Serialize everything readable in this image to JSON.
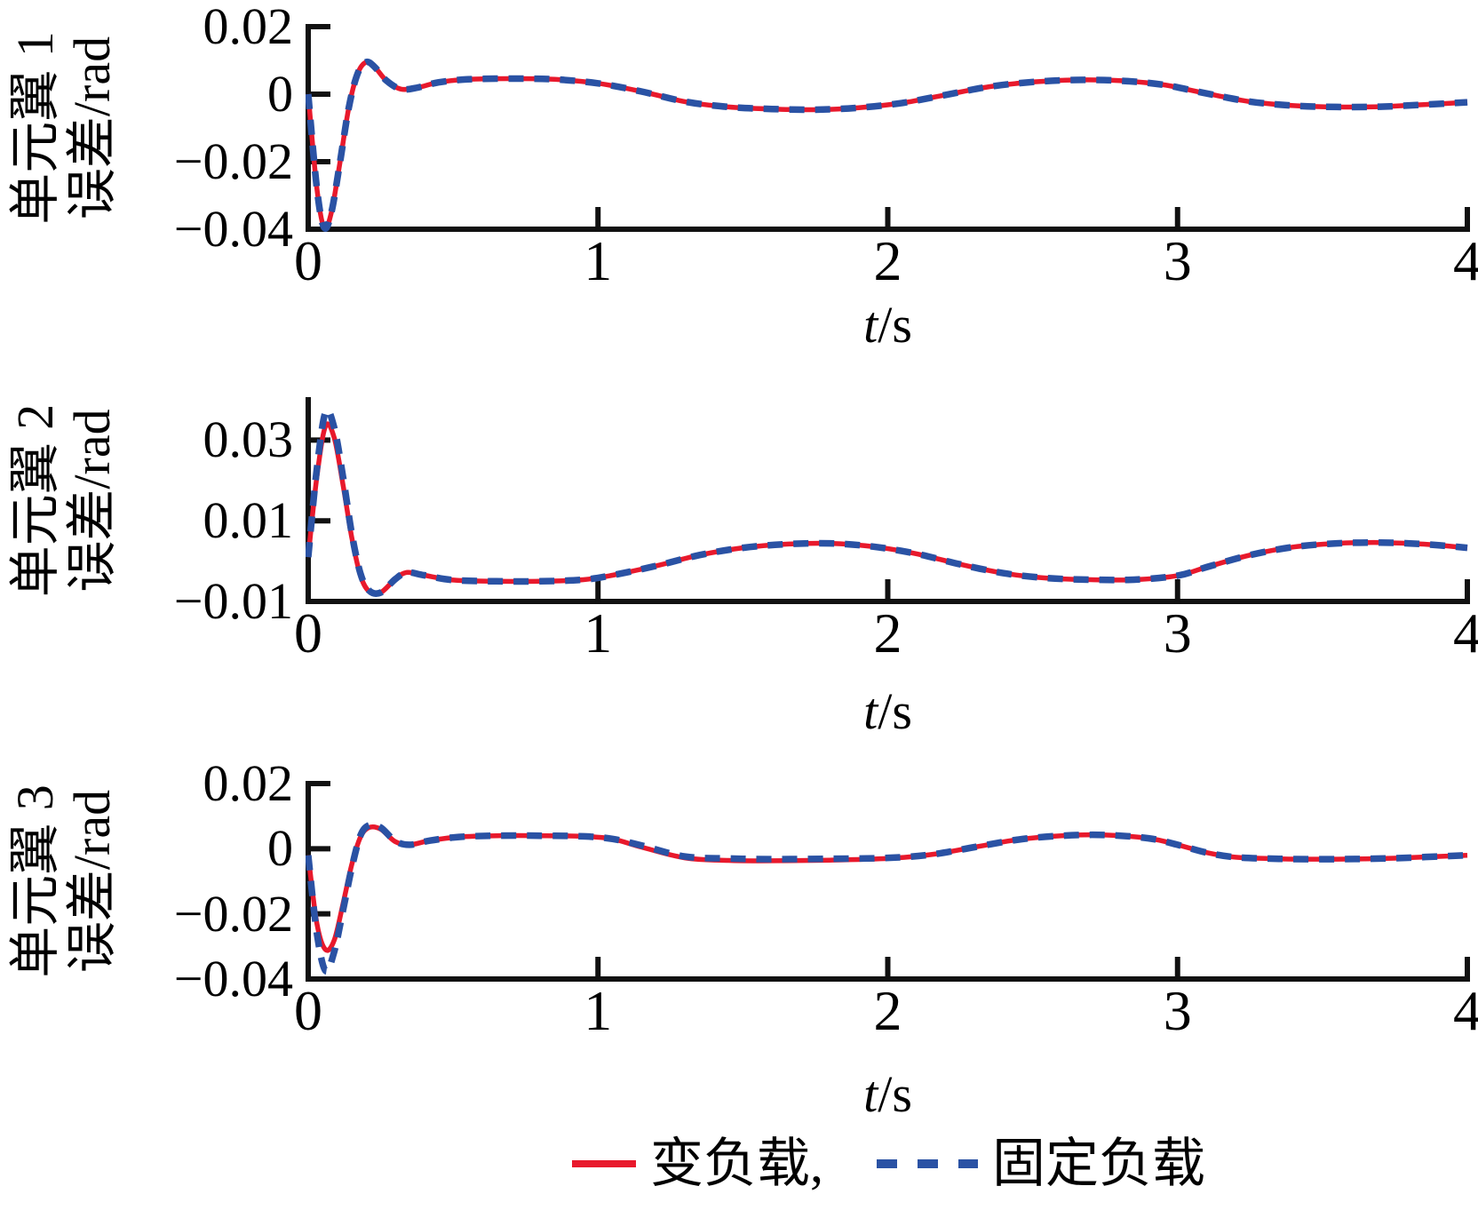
{
  "page": {
    "background": "#ffffff",
    "text_color": "#000000"
  },
  "colors": {
    "variable_load": "#e8192c",
    "fixed_load": "#2a52a4",
    "axis": "#111111"
  },
  "legend": {
    "items": [
      {
        "label": "变负载,",
        "color": "#e8192c",
        "style": "solid"
      },
      {
        "label": "固定负载",
        "color": "#2a52a4",
        "style": "dashed"
      }
    ]
  },
  "chart_data": [
    {
      "type": "line",
      "title": "",
      "ylabel_lines": [
        "单元翼 1",
        "误差/rad"
      ],
      "xlabel": {
        "var": "t",
        "unit": "/s"
      },
      "xlim": [
        0,
        4
      ],
      "ylim": [
        -0.04,
        0.02
      ],
      "grid": false,
      "xticks": [
        {
          "v": 0,
          "label": "0"
        },
        {
          "v": 1,
          "label": "1"
        },
        {
          "v": 2,
          "label": "2"
        },
        {
          "v": 3,
          "label": "3"
        },
        {
          "v": 4,
          "label": "4"
        }
      ],
      "yticks": [
        {
          "v": 0.02,
          "label": "0.02"
        },
        {
          "v": 0,
          "label": "0"
        },
        {
          "v": -0.02,
          "label": "−0.02"
        },
        {
          "v": -0.04,
          "label": "−0.04"
        }
      ],
      "series": [
        {
          "name": "变负载",
          "color": "#e8192c",
          "dash": null,
          "width": 5.5,
          "points": [
            [
              0,
              0
            ],
            [
              0.03,
              -0.028
            ],
            [
              0.055,
              -0.0395
            ],
            [
              0.08,
              -0.035
            ],
            [
              0.11,
              -0.02
            ],
            [
              0.14,
              -0.004
            ],
            [
              0.17,
              0.006
            ],
            [
              0.2,
              0.0095
            ],
            [
              0.23,
              0.008
            ],
            [
              0.27,
              0.004
            ],
            [
              0.32,
              0.0015
            ],
            [
              0.38,
              0.002
            ],
            [
              0.45,
              0.0035
            ],
            [
              0.55,
              0.0044
            ],
            [
              0.7,
              0.0046
            ],
            [
              0.85,
              0.0044
            ],
            [
              1.0,
              0.0032
            ],
            [
              1.15,
              0.0008
            ],
            [
              1.3,
              -0.0022
            ],
            [
              1.45,
              -0.0038
            ],
            [
              1.6,
              -0.0044
            ],
            [
              1.75,
              -0.0046
            ],
            [
              1.9,
              -0.004
            ],
            [
              2.05,
              -0.0026
            ],
            [
              2.2,
              -0.0002
            ],
            [
              2.35,
              0.0022
            ],
            [
              2.5,
              0.0036
            ],
            [
              2.65,
              0.0042
            ],
            [
              2.8,
              0.004
            ],
            [
              2.95,
              0.0028
            ],
            [
              3.1,
              0.0002
            ],
            [
              3.25,
              -0.0022
            ],
            [
              3.4,
              -0.0034
            ],
            [
              3.55,
              -0.0038
            ],
            [
              3.7,
              -0.0037
            ],
            [
              3.85,
              -0.0031
            ],
            [
              4.0,
              -0.0024
            ]
          ]
        },
        {
          "name": "固定负载",
          "color": "#2a52a4",
          "dash": "17 12",
          "width": 7.5,
          "points": [
            [
              0,
              0
            ],
            [
              0.03,
              -0.028
            ],
            [
              0.055,
              -0.0395
            ],
            [
              0.08,
              -0.035
            ],
            [
              0.11,
              -0.02
            ],
            [
              0.14,
              -0.004
            ],
            [
              0.17,
              0.006
            ],
            [
              0.2,
              0.0095
            ],
            [
              0.23,
              0.008
            ],
            [
              0.27,
              0.004
            ],
            [
              0.32,
              0.0015
            ],
            [
              0.38,
              0.002
            ],
            [
              0.45,
              0.0035
            ],
            [
              0.55,
              0.0044
            ],
            [
              0.7,
              0.0046
            ],
            [
              0.85,
              0.0044
            ],
            [
              1.0,
              0.0032
            ],
            [
              1.15,
              0.0008
            ],
            [
              1.3,
              -0.0022
            ],
            [
              1.45,
              -0.0038
            ],
            [
              1.6,
              -0.0044
            ],
            [
              1.75,
              -0.0046
            ],
            [
              1.9,
              -0.004
            ],
            [
              2.05,
              -0.0026
            ],
            [
              2.2,
              -0.0002
            ],
            [
              2.35,
              0.0022
            ],
            [
              2.5,
              0.0036
            ],
            [
              2.65,
              0.0042
            ],
            [
              2.8,
              0.004
            ],
            [
              2.95,
              0.0028
            ],
            [
              3.1,
              0.0002
            ],
            [
              3.25,
              -0.0022
            ],
            [
              3.4,
              -0.0034
            ],
            [
              3.55,
              -0.0038
            ],
            [
              3.7,
              -0.0037
            ],
            [
              3.85,
              -0.0031
            ],
            [
              4.0,
              -0.0024
            ]
          ]
        }
      ]
    },
    {
      "type": "line",
      "title": "",
      "ylabel_lines": [
        "单元翼 2",
        "误差/rad"
      ],
      "xlabel": {
        "var": "t",
        "unit": "/s"
      },
      "xlim": [
        0,
        4
      ],
      "ylim": [
        -0.01,
        0.04
      ],
      "grid": false,
      "xticks": [
        {
          "v": 0,
          "label": "0"
        },
        {
          "v": 1,
          "label": "1"
        },
        {
          "v": 2,
          "label": "2"
        },
        {
          "v": 3,
          "label": "3"
        },
        {
          "v": 4,
          "label": "4"
        }
      ],
      "yticks": [
        {
          "v": 0.03,
          "label": "0.03"
        },
        {
          "v": 0.01,
          "label": "0.01"
        },
        {
          "v": -0.01,
          "label": "−0.01"
        }
      ],
      "series": [
        {
          "name": "变负载",
          "color": "#e8192c",
          "dash": null,
          "width": 5.5,
          "points": [
            [
              0,
              0.001
            ],
            [
              0.03,
              0.021
            ],
            [
              0.06,
              0.0335
            ],
            [
              0.09,
              0.0305
            ],
            [
              0.12,
              0.019
            ],
            [
              0.15,
              0.006
            ],
            [
              0.18,
              -0.0035
            ],
            [
              0.21,
              -0.0075
            ],
            [
              0.25,
              -0.0078
            ],
            [
              0.3,
              -0.0045
            ],
            [
              0.34,
              -0.0028
            ],
            [
              0.4,
              -0.0035
            ],
            [
              0.5,
              -0.0047
            ],
            [
              0.65,
              -0.005
            ],
            [
              0.8,
              -0.005
            ],
            [
              0.95,
              -0.0046
            ],
            [
              1.05,
              -0.0035
            ],
            [
              1.2,
              -0.0012
            ],
            [
              1.35,
              0.0015
            ],
            [
              1.5,
              0.0033
            ],
            [
              1.65,
              0.0042
            ],
            [
              1.8,
              0.0044
            ],
            [
              1.95,
              0.0036
            ],
            [
              2.1,
              0.0018
            ],
            [
              2.25,
              -0.0008
            ],
            [
              2.4,
              -0.003
            ],
            [
              2.55,
              -0.0042
            ],
            [
              2.7,
              -0.0046
            ],
            [
              2.85,
              -0.0046
            ],
            [
              3.0,
              -0.0036
            ],
            [
              3.1,
              -0.0015
            ],
            [
              3.25,
              0.0015
            ],
            [
              3.4,
              0.0035
            ],
            [
              3.55,
              0.0044
            ],
            [
              3.7,
              0.0046
            ],
            [
              3.85,
              0.0042
            ],
            [
              4.0,
              0.0033
            ]
          ]
        },
        {
          "name": "固定负载",
          "color": "#2a52a4",
          "dash": "17 12",
          "width": 7.5,
          "points": [
            [
              0,
              0.001
            ],
            [
              0.03,
              0.023
            ],
            [
              0.06,
              0.037
            ],
            [
              0.09,
              0.033
            ],
            [
              0.12,
              0.021
            ],
            [
              0.15,
              0.007
            ],
            [
              0.18,
              -0.003
            ],
            [
              0.21,
              -0.0073
            ],
            [
              0.25,
              -0.0078
            ],
            [
              0.3,
              -0.0045
            ],
            [
              0.34,
              -0.0028
            ],
            [
              0.4,
              -0.0035
            ],
            [
              0.5,
              -0.0047
            ],
            [
              0.65,
              -0.005
            ],
            [
              0.8,
              -0.005
            ],
            [
              0.95,
              -0.0046
            ],
            [
              1.05,
              -0.0035
            ],
            [
              1.2,
              -0.0012
            ],
            [
              1.35,
              0.0015
            ],
            [
              1.5,
              0.0033
            ],
            [
              1.65,
              0.0042
            ],
            [
              1.8,
              0.0044
            ],
            [
              1.95,
              0.0036
            ],
            [
              2.1,
              0.0018
            ],
            [
              2.25,
              -0.0008
            ],
            [
              2.4,
              -0.003
            ],
            [
              2.55,
              -0.0042
            ],
            [
              2.7,
              -0.0046
            ],
            [
              2.85,
              -0.0046
            ],
            [
              3.0,
              -0.0036
            ],
            [
              3.1,
              -0.0015
            ],
            [
              3.25,
              0.0015
            ],
            [
              3.4,
              0.0035
            ],
            [
              3.55,
              0.0044
            ],
            [
              3.7,
              0.0046
            ],
            [
              3.85,
              0.0042
            ],
            [
              4.0,
              0.0033
            ]
          ]
        }
      ]
    },
    {
      "type": "line",
      "title": "",
      "ylabel_lines": [
        "单元翼 3",
        "误差/rad"
      ],
      "xlabel": {
        "var": "t",
        "unit": "/s"
      },
      "xlim": [
        0,
        4
      ],
      "ylim": [
        -0.04,
        0.02
      ],
      "grid": false,
      "xticks": [
        {
          "v": 0,
          "label": "0"
        },
        {
          "v": 1,
          "label": "1"
        },
        {
          "v": 2,
          "label": "2"
        },
        {
          "v": 3,
          "label": "3"
        },
        {
          "v": 4,
          "label": "4"
        }
      ],
      "yticks": [
        {
          "v": 0.02,
          "label": "0.02"
        },
        {
          "v": 0,
          "label": "0"
        },
        {
          "v": -0.02,
          "label": "−0.02"
        },
        {
          "v": -0.04,
          "label": "−0.04"
        }
      ],
      "series": [
        {
          "name": "变负载",
          "color": "#e8192c",
          "dash": null,
          "width": 5.5,
          "points": [
            [
              0,
              -0.002
            ],
            [
              0.03,
              -0.023
            ],
            [
              0.06,
              -0.031
            ],
            [
              0.09,
              -0.028
            ],
            [
              0.12,
              -0.017
            ],
            [
              0.15,
              -0.005
            ],
            [
              0.18,
              0.0035
            ],
            [
              0.21,
              0.0065
            ],
            [
              0.25,
              0.006
            ],
            [
              0.3,
              0.0022
            ],
            [
              0.35,
              0.0012
            ],
            [
              0.42,
              0.0025
            ],
            [
              0.52,
              0.0036
            ],
            [
              0.65,
              0.004
            ],
            [
              0.8,
              0.004
            ],
            [
              0.95,
              0.0038
            ],
            [
              1.05,
              0.003
            ],
            [
              1.15,
              0.0005
            ],
            [
              1.3,
              -0.0028
            ],
            [
              1.45,
              -0.0036
            ],
            [
              1.6,
              -0.0037
            ],
            [
              1.8,
              -0.0035
            ],
            [
              2.0,
              -0.003
            ],
            [
              2.15,
              -0.0018
            ],
            [
              2.3,
              0.0005
            ],
            [
              2.45,
              0.0028
            ],
            [
              2.6,
              0.004
            ],
            [
              2.75,
              0.0042
            ],
            [
              2.9,
              0.0032
            ],
            [
              3.0,
              0.0012
            ],
            [
              3.1,
              -0.0012
            ],
            [
              3.2,
              -0.0026
            ],
            [
              3.35,
              -0.0031
            ],
            [
              3.55,
              -0.0032
            ],
            [
              3.75,
              -0.0029
            ],
            [
              4.0,
              -0.002
            ]
          ]
        },
        {
          "name": "固定负载",
          "color": "#2a52a4",
          "dash": "17 12",
          "width": 7.5,
          "points": [
            [
              0,
              -0.002
            ],
            [
              0.03,
              -0.026
            ],
            [
              0.06,
              -0.0375
            ],
            [
              0.09,
              -0.0315
            ],
            [
              0.12,
              -0.019
            ],
            [
              0.15,
              -0.006
            ],
            [
              0.18,
              0.004
            ],
            [
              0.21,
              0.0072
            ],
            [
              0.25,
              0.0065
            ],
            [
              0.3,
              0.0024
            ],
            [
              0.35,
              0.0012
            ],
            [
              0.42,
              0.0025
            ],
            [
              0.52,
              0.0036
            ],
            [
              0.65,
              0.004
            ],
            [
              0.8,
              0.004
            ],
            [
              0.95,
              0.0038
            ],
            [
              1.05,
              0.003
            ],
            [
              1.15,
              0.001
            ],
            [
              1.3,
              -0.0024
            ],
            [
              1.45,
              -0.003
            ],
            [
              1.6,
              -0.0032
            ],
            [
              1.8,
              -0.0031
            ],
            [
              2.0,
              -0.0028
            ],
            [
              2.15,
              -0.0018
            ],
            [
              2.3,
              0.0005
            ],
            [
              2.45,
              0.0028
            ],
            [
              2.6,
              0.004
            ],
            [
              2.75,
              0.0042
            ],
            [
              2.9,
              0.0032
            ],
            [
              3.0,
              0.0012
            ],
            [
              3.1,
              -0.0012
            ],
            [
              3.2,
              -0.0026
            ],
            [
              3.35,
              -0.0031
            ],
            [
              3.55,
              -0.0032
            ],
            [
              3.75,
              -0.0029
            ],
            [
              4.0,
              -0.002
            ]
          ]
        }
      ]
    }
  ]
}
